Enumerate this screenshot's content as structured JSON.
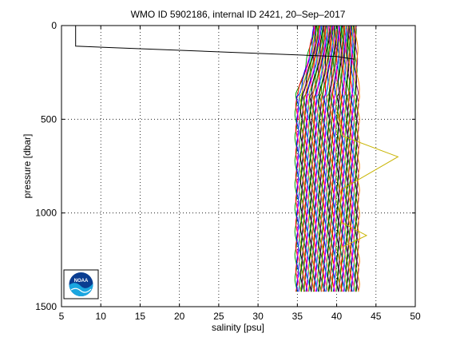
{
  "chart_data": {
    "type": "line",
    "title": "WMO ID 5902186, internal ID 2421, 20–Sep–2017",
    "xlabel": "salinity [psu]",
    "ylabel": "pressure [dbar]",
    "xlim": [
      5,
      50
    ],
    "ylim": [
      0,
      1500
    ],
    "y_reversed": true,
    "grid": true,
    "x_ticks": [
      "5",
      "10",
      "15",
      "20",
      "25",
      "30",
      "35",
      "40",
      "45",
      "50"
    ],
    "y_ticks": [
      "0",
      "500",
      "1000",
      "1500"
    ],
    "series": [
      {
        "color": "#000000",
        "x": [
          6.8,
          6.8,
          40.0,
          42.3
        ],
        "y": [
          0,
          110,
          165,
          180
        ]
      },
      {
        "color": "#c8b400",
        "x": [
          40.0,
          40.8,
          47.8,
          40.8,
          40.4,
          40.6,
          43.8,
          40.8,
          40.8
        ],
        "y": [
          460,
          590,
          700,
          870,
          960,
          1050,
          1120,
          1180,
          1260
        ]
      }
    ],
    "profile_band": {
      "description_colors": [
        "#00a000",
        "#ff0000",
        "#0000ff",
        "#ff00ff",
        "#00c0c0",
        "#c8b400",
        "#000000",
        "#008000",
        "#800080",
        "#ff8000"
      ],
      "surface_salinity_range": [
        37.0,
        42.5
      ],
      "deep_salinity_range": [
        34.8,
        42.8
      ],
      "pressure_range": [
        0,
        1420
      ]
    },
    "logo": "NOAA"
  }
}
